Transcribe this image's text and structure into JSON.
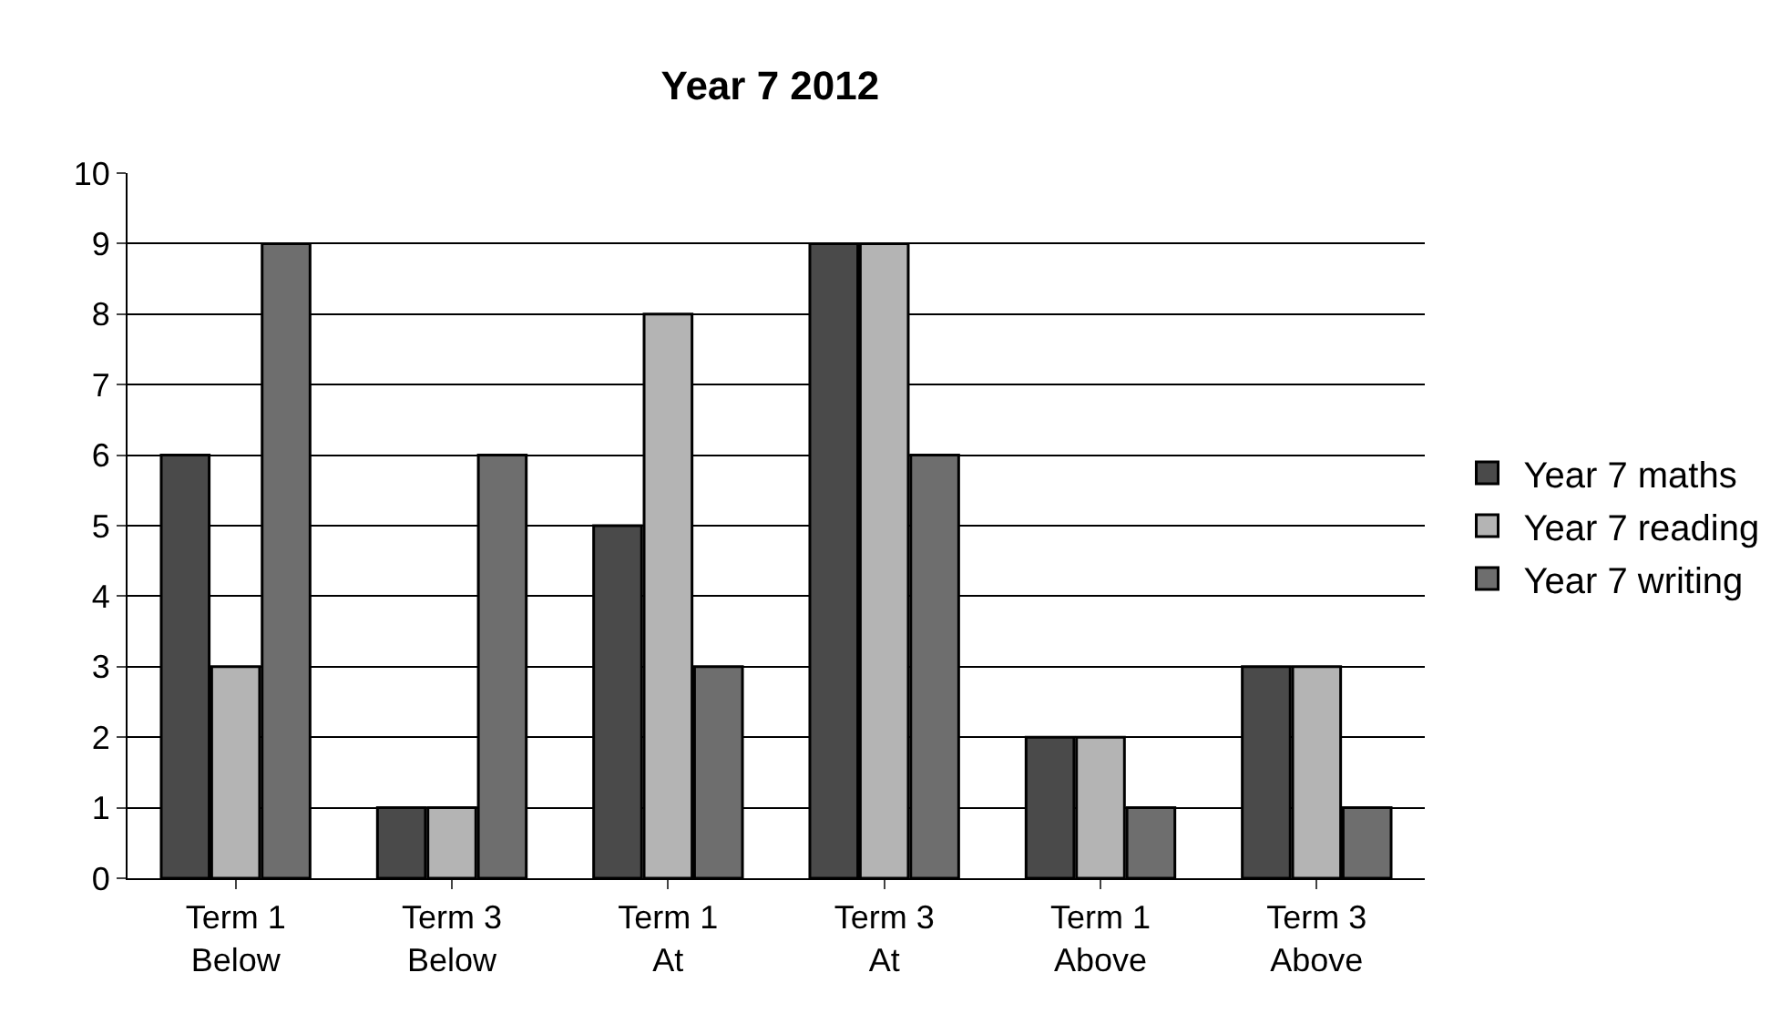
{
  "chart_data": {
    "type": "bar",
    "title": "Year 7 2012",
    "categories": [
      "Term 1\nBelow",
      "Term 3\nBelow",
      "Term 1\nAt",
      "Term 3\nAt",
      "Term 1\nAbove",
      "Term 3\nAbove"
    ],
    "series": [
      {
        "name": "Year 7 maths",
        "color": "#4a4a4a",
        "values": [
          6,
          1,
          5,
          9,
          2,
          3
        ]
      },
      {
        "name": "Year 7 reading",
        "color": "#b4b4b4",
        "values": [
          3,
          1,
          8,
          9,
          2,
          3
        ]
      },
      {
        "name": "Year 7 writing",
        "color": "#6e6e6e",
        "values": [
          9,
          6,
          3,
          6,
          1,
          1
        ]
      }
    ],
    "ylim": [
      0,
      10
    ],
    "yticks": [
      0,
      1,
      2,
      3,
      4,
      5,
      6,
      7,
      8,
      9,
      10
    ],
    "grid": "y",
    "legend": "right"
  }
}
